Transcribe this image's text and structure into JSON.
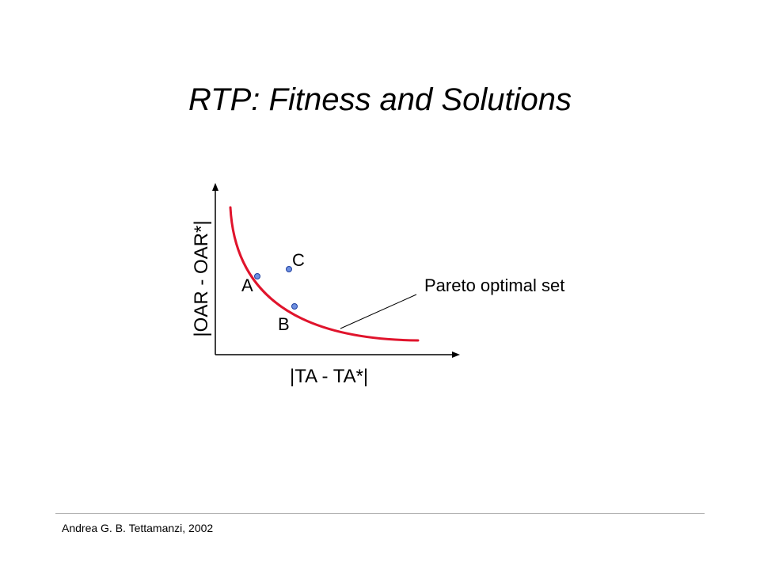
{
  "title": "RTP: Fitness and Solutions",
  "diagram": {
    "x_axis_label": "|TA - TA*|",
    "y_axis_label": "|OAR - OAR*|",
    "points": [
      {
        "label": "A"
      },
      {
        "label": "B"
      },
      {
        "label": "C"
      }
    ],
    "front_label": "Pareto optimal set",
    "colors": {
      "front": "#e0142c",
      "point_fill": "#6d8fe0",
      "point_stroke": "#1f3f9f",
      "axis": "#000000"
    }
  },
  "footer": {
    "credit": "Andrea G. B. Tettamanzi, 2002"
  }
}
